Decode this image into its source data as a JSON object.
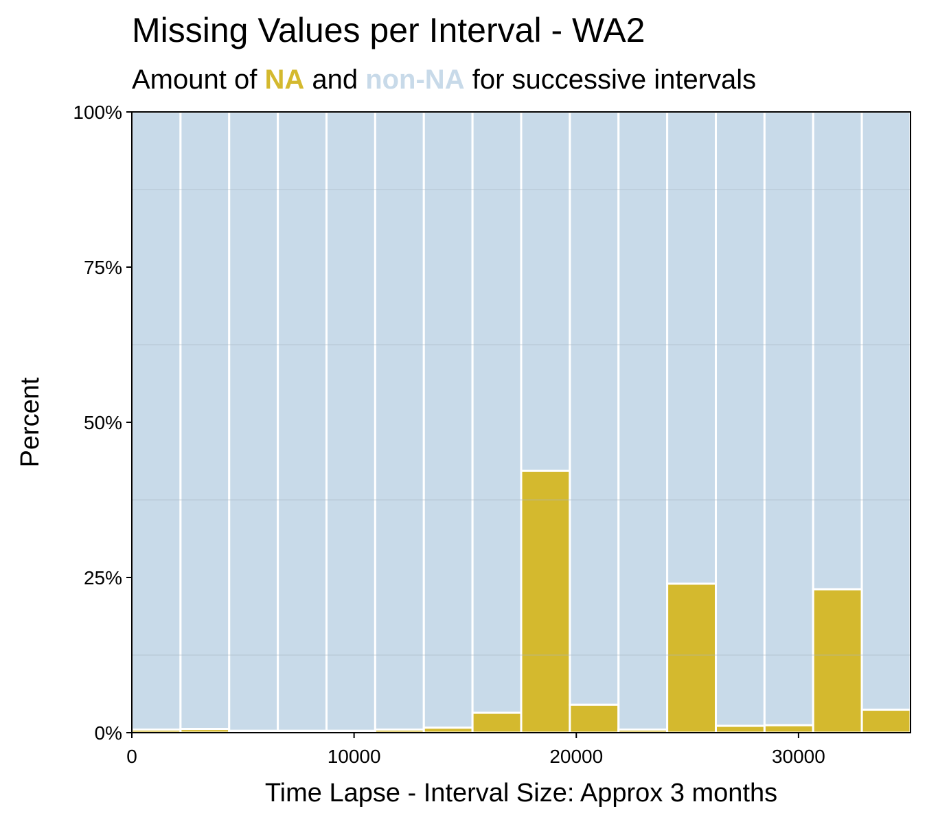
{
  "header": {
    "title": "Missing Values per Interval - WA2",
    "subtitle_prefix": "Amount of ",
    "subtitle_na": "NA",
    "subtitle_mid": " and ",
    "subtitle_nonna": "non-NA",
    "subtitle_suffix": " for successive intervals"
  },
  "colors": {
    "na": "#d4b92e",
    "non_na": "#c8dae9",
    "bar_border": "#ffffff",
    "gridline": "#a9b7c2",
    "panel_border": "#000000"
  },
  "chart_data": {
    "type": "bar",
    "xlabel": "Time Lapse - Interval Size: Approx 3 months",
    "ylabel": "Percent",
    "xlim": [
      0,
      35040
    ],
    "ylim": [
      0,
      100
    ],
    "x_ticks": [
      0,
      10000,
      20000,
      30000
    ],
    "x_tick_labels": [
      "0",
      "10000",
      "20000",
      "30000"
    ],
    "y_ticks": [
      0,
      25,
      50,
      75,
      100
    ],
    "y_tick_labels": [
      "0%",
      "25%",
      "50%",
      "75%",
      "100%"
    ],
    "grid": true,
    "interval_starts": [
      0,
      2190,
      4380,
      6570,
      8760,
      10950,
      13140,
      15330,
      17520,
      19710,
      21900,
      24090,
      26280,
      28470,
      30660,
      32850
    ],
    "interval_ends": [
      2190,
      4380,
      6570,
      8760,
      10950,
      13140,
      15330,
      17520,
      19710,
      21900,
      24090,
      26280,
      28470,
      30660,
      32850,
      35040
    ],
    "series": [
      {
        "name": "NA",
        "values": [
          0.5,
          0.6,
          0.3,
          0.3,
          0.3,
          0.5,
          0.8,
          3.2,
          42.2,
          4.5,
          0.5,
          24.0,
          1.1,
          1.2,
          23.1,
          3.7
        ]
      },
      {
        "name": "non-NA",
        "values": [
          99.5,
          99.4,
          99.7,
          99.7,
          99.7,
          99.5,
          99.2,
          96.8,
          57.8,
          95.5,
          99.5,
          76.0,
          98.9,
          98.8,
          76.9,
          96.3
        ]
      }
    ]
  }
}
